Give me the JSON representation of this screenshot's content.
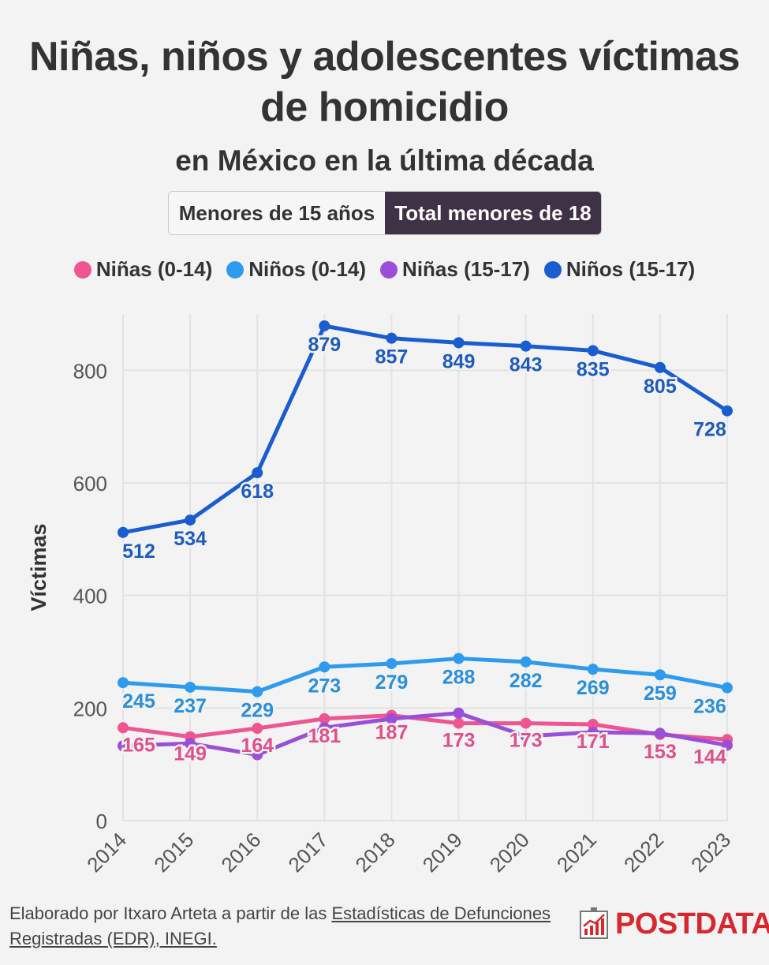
{
  "header": {
    "title_line1": "Niñas, niños y adolescentes víctimas",
    "title_line2": "de homicidio",
    "subtitle": "en México en la última década"
  },
  "tabs": [
    {
      "label": "Menores de 15 años",
      "active": false
    },
    {
      "label": "Total menores de 18",
      "active": true
    }
  ],
  "colors": {
    "ninas_0_14": "#ef5591",
    "ninos_0_14": "#2e9bef",
    "ninas_15_17": "#9b4fd8",
    "ninos_15_17": "#1a5dd0",
    "label_ninas_0_14": "#e0508a",
    "label_ninos_0_14": "#2a8fdc",
    "label_ninos_15_17": "#1d5bbf",
    "brand": "#d9272e",
    "tab_active": "#3d3246"
  },
  "chart_data": {
    "type": "line",
    "title": "Niñas, niños y adolescentes víctimas de homicidio en México en la última década",
    "ylabel": "Víctimas",
    "xlabel": "",
    "ylim": [
      0,
      900
    ],
    "yticks": [
      "0",
      "200",
      "400",
      "600",
      "800"
    ],
    "ytick_values": [
      0,
      200,
      400,
      600,
      800
    ],
    "x": [
      "2014",
      "2015",
      "2016",
      "2017",
      "2018",
      "2019",
      "2020",
      "2021",
      "2022",
      "2023"
    ],
    "grid": true,
    "legend_position": "top-center",
    "series": [
      {
        "key": "ninas_0_14",
        "name": "Niñas (0-14)",
        "values": [
          165,
          149,
          164,
          181,
          187,
          173,
          173,
          171,
          153,
          144
        ],
        "labeled": true
      },
      {
        "key": "ninos_0_14",
        "name": "Niños (0-14)",
        "values": [
          245,
          237,
          229,
          273,
          279,
          288,
          282,
          269,
          259,
          236
        ],
        "labeled": true
      },
      {
        "key": "ninas_15_17",
        "name": "Niñas (15-17)",
        "values": [
          133,
          137,
          117,
          165,
          181,
          191,
          150,
          157,
          155,
          134
        ],
        "labeled": false
      },
      {
        "key": "ninos_15_17",
        "name": "Niños (15-17)",
        "values": [
          512,
          534,
          618,
          879,
          857,
          849,
          843,
          835,
          805,
          728
        ],
        "labeled": true
      }
    ]
  },
  "footer": {
    "text_prefix": "Elaborado por Itxaro Arteta a partir de las ",
    "link_text": "Estadísticas de Defunciones Registradas (EDR), INEGI."
  },
  "brand": {
    "name": "POSTDATA"
  }
}
